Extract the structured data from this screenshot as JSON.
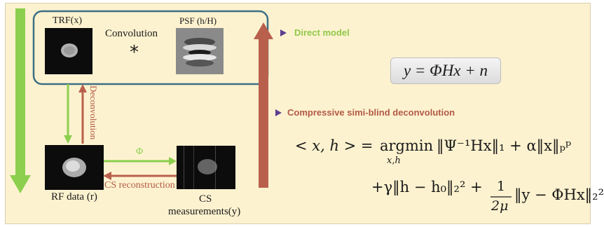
{
  "labels": {
    "trf": "TRF(x)",
    "convolution": "Convolution",
    "star": "*",
    "psf": "PSF (h/H)",
    "deconvolution": "Deconvolution",
    "phi": "Φ",
    "cs_reconstruction": "CS reconstruction",
    "rf_data": "RF data (r)",
    "cs_measurements_line1": "CS",
    "cs_measurements_line2": "measurements(y)"
  },
  "sections": {
    "direct_model": "Direct model",
    "compressive": "Compressive simi-blind deconvolution"
  },
  "equations": {
    "direct": "y = ΦHx + n",
    "line1_lhs": "< x, h > = ",
    "line1_op": "argmin",
    "line1_sub": "x,h",
    "line1_rhs": "‖Ψ⁻¹Hx‖₁ + α‖x‖ₚᵖ",
    "line2_a": "+γ‖h − h₀‖₂² + ",
    "line2_frac_num": "1",
    "line2_frac_den": "2μ",
    "line2_b": "‖y − ΦHx‖₂²"
  },
  "colors": {
    "background": "#fdf2cf",
    "green_arrow": "#8ccf4f",
    "red_arrow": "#b9604d",
    "box_border": "#3d6f86",
    "direct_model_text": "#8fc94a",
    "compressive_text": "#b25a45",
    "bullet_marker": "#5b3f8f"
  }
}
